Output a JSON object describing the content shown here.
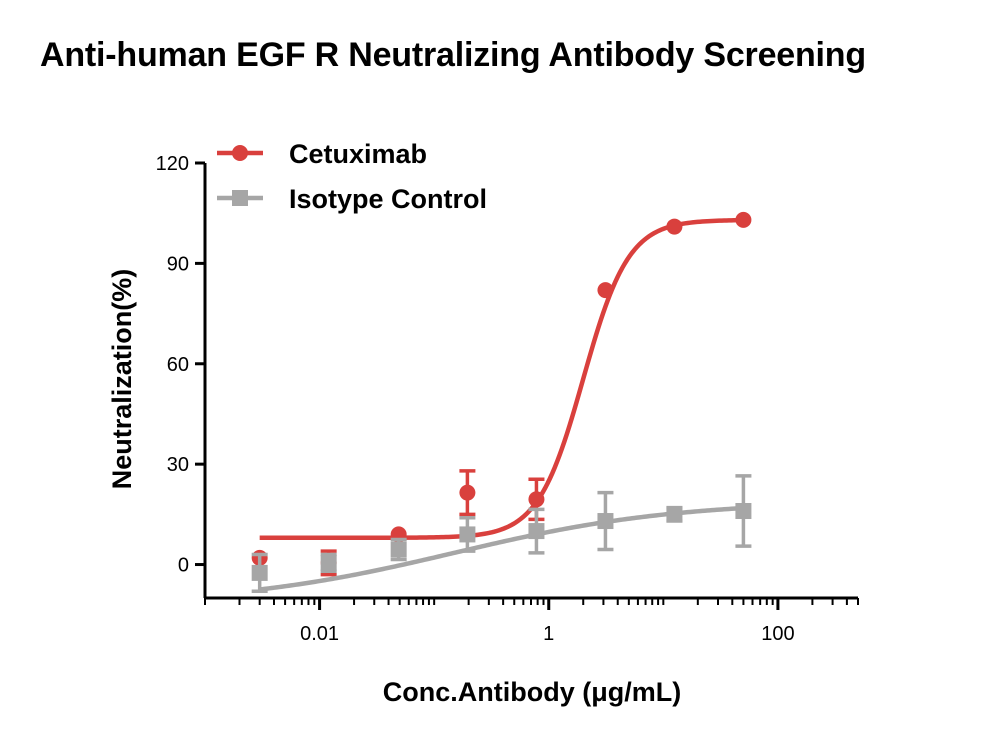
{
  "chart_data": {
    "type": "scatter",
    "title": "Anti-human EGF R Neutralizing Antibody Screening",
    "xlabel": "Conc.Antibody (μg/mL)",
    "ylabel": "Neutralization(%)",
    "x_scale": "log",
    "xlim": [
      0.001,
      500
    ],
    "ylim": [
      -10,
      120
    ],
    "x_ticks": [
      0.01,
      1,
      100
    ],
    "x_tick_labels": [
      "0.01",
      "1",
      "100"
    ],
    "y_ticks": [
      0,
      30,
      60,
      90,
      120
    ],
    "y_tick_labels": [
      "0",
      "30",
      "60",
      "90",
      "120"
    ],
    "legend_position": "top-left",
    "series": [
      {
        "name": "Cetuximab",
        "color": "#d9403d",
        "marker": "circle",
        "x": [
          0.003,
          0.012,
          0.049,
          0.195,
          0.781,
          3.125,
          12.5,
          50
        ],
        "y": [
          2,
          0.5,
          9,
          21.5,
          19.5,
          82,
          101,
          103
        ],
        "err": [
          0,
          3.5,
          0,
          6.5,
          6,
          0,
          0,
          0
        ],
        "fit": {
          "bottom": 8,
          "top": 103,
          "ec50": 2.0,
          "hill": 2.2,
          "x_start": 0.003,
          "x_end": 50
        }
      },
      {
        "name": "Isotype Control",
        "color": "#a6a6a6",
        "marker": "square",
        "x": [
          0.003,
          0.012,
          0.049,
          0.195,
          0.781,
          3.125,
          12.5,
          50
        ],
        "y": [
          -2.5,
          0.5,
          4.5,
          9,
          10,
          13,
          15,
          16
        ],
        "err": [
          5.5,
          2.5,
          3,
          5,
          6.5,
          8.5,
          2,
          10.5
        ],
        "fit": {
          "bottom": -12,
          "top": 19,
          "ec50": 0.15,
          "hill": 0.45,
          "x_start": 0.003,
          "x_end": 50
        }
      }
    ]
  }
}
